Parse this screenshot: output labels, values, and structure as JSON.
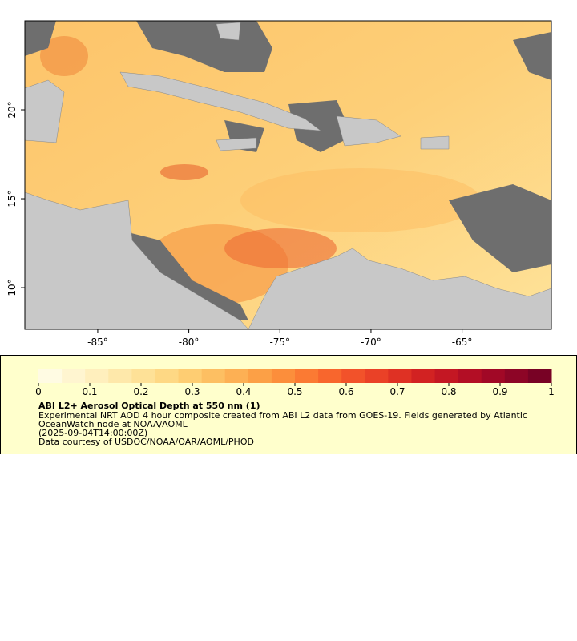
{
  "chart_data": {
    "type": "map",
    "xlim": [
      -89,
      -60.1
    ],
    "ylim": [
      7.66,
      25
    ],
    "xticks": [
      {
        "value": -85,
        "label": "-85°"
      },
      {
        "value": -80,
        "label": "-80°"
      },
      {
        "value": -75,
        "label": "-75°"
      },
      {
        "value": -70,
        "label": "-70°"
      },
      {
        "value": -65,
        "label": "-65°"
      }
    ],
    "yticks": [
      {
        "value": 10,
        "label": "10°"
      },
      {
        "value": 15,
        "label": "15°"
      },
      {
        "value": 20,
        "label": "20°"
      }
    ],
    "colorbar": {
      "lim": [
        0,
        1
      ],
      "ticks": [
        0,
        0.1,
        0.2,
        0.3,
        0.4,
        0.5,
        0.6,
        0.7,
        0.8,
        0.9,
        1
      ],
      "colors": [
        "#fffbe3",
        "#fff5d0",
        "#ffefbd",
        "#fee8aa",
        "#fee197",
        "#fed884",
        "#fecd72",
        "#fdbf62",
        "#fdb054",
        "#fca046",
        "#fc8e3b",
        "#fb7a33",
        "#f8662d",
        "#f2522a",
        "#ea4127",
        "#df3124",
        "#d22222",
        "#c41723",
        "#b30e25",
        "#a10826",
        "#8d0526",
        "#780225"
      ]
    },
    "title": "ABI L2+ Aerosol Optical Depth at 550 nm (1)",
    "description": [
      "Experimental NRT AOD 4 hour composite created from ABI L2 data from GOES-19. Fields generated by Atlantic",
      "OceanWatch node at NOAA/AOML",
      "(2025-09-04T14:00:00Z)",
      "Data courtesy of USDOC/NOAA/OAR/AOML/PHOD"
    ]
  }
}
